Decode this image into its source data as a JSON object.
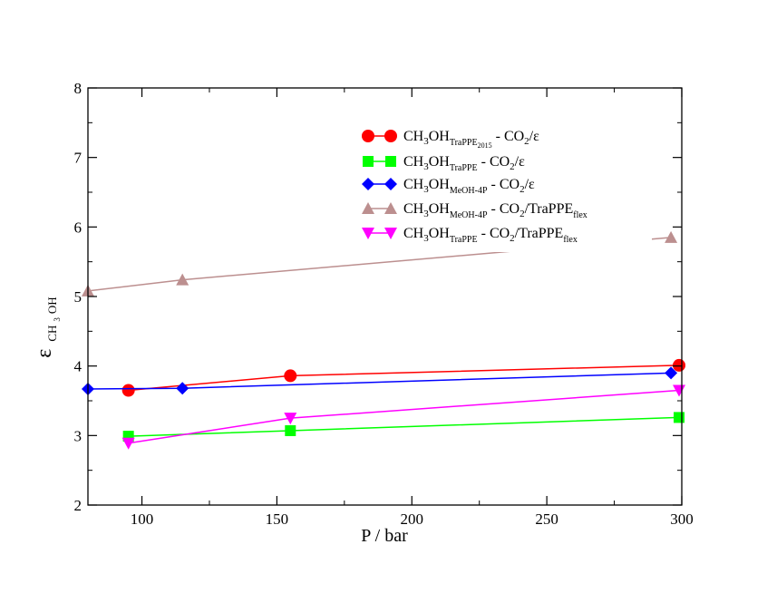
{
  "chart_data": {
    "type": "line",
    "xlabel": "P  / bar",
    "ylabel": {
      "main": "ε",
      "sub_pre": "CH",
      "sub_num": "3",
      "sub_post": "OH"
    },
    "xlim": [
      80,
      300
    ],
    "ylim": [
      2,
      8
    ],
    "xticks": [
      100,
      150,
      200,
      250,
      300
    ],
    "yticks": [
      2,
      3,
      4,
      5,
      6,
      7,
      8
    ],
    "legend_position": "top-right",
    "series": [
      {
        "name": "CH3OH_TraPPE2015 - CO2/ε",
        "label": {
          "pre": "CH",
          "n3": "3",
          "oh": "OH",
          "sub": "TraPPE",
          "subsub": "2015",
          "mid": " - CO",
          "n2": "2",
          "tail": "/ε",
          "tailsub": ""
        },
        "color": "#ff0000",
        "marker": "circle",
        "x": [
          95,
          155,
          299
        ],
        "y": [
          3.65,
          3.86,
          4.01
        ]
      },
      {
        "name": "CH3OH_TraPPE - CO2/ε",
        "label": {
          "pre": "CH",
          "n3": "3",
          "oh": "OH",
          "sub": "TraPPE",
          "subsub": "",
          "mid": " - CO",
          "n2": "2",
          "tail": "/ε",
          "tailsub": ""
        },
        "color": "#00ff00",
        "marker": "square",
        "x": [
          95,
          155,
          299
        ],
        "y": [
          2.99,
          3.07,
          3.26
        ]
      },
      {
        "name": "CH3OH_MeOH-4P - CO2/ε",
        "label": {
          "pre": "CH",
          "n3": "3",
          "oh": "OH",
          "sub": "MeOH-4P",
          "subsub": "",
          "mid": " - CO",
          "n2": "2",
          "tail": "/ε",
          "tailsub": ""
        },
        "color": "#0000ff",
        "marker": "diamond",
        "x": [
          80,
          115,
          296
        ],
        "y": [
          3.67,
          3.68,
          3.9
        ]
      },
      {
        "name": "CH3OH_MeOH-4P - CO2/TraPPE_flex",
        "label": {
          "pre": "CH",
          "n3": "3",
          "oh": "OH",
          "sub": "MeOH-4P",
          "subsub": "",
          "mid": " - CO",
          "n2": "2",
          "tail": "/TraPPE",
          "tailsub": "flex"
        },
        "color": "#bc8f8f",
        "marker": "triangle-up",
        "x": [
          80,
          115,
          296
        ],
        "y": [
          5.08,
          5.24,
          5.85
        ]
      },
      {
        "name": "CH3OH_TraPPE - CO2/TraPPE_flex",
        "label": {
          "pre": "CH",
          "n3": "3",
          "oh": "OH",
          "sub": "TraPPE",
          "subsub": "",
          "mid": " - CO",
          "n2": "2",
          "tail": "/TraPPE",
          "tailsub": "flex"
        },
        "color": "#ff00ff",
        "marker": "triangle-down",
        "x": [
          95,
          155,
          299
        ],
        "y": [
          2.89,
          3.25,
          3.65
        ]
      }
    ]
  }
}
